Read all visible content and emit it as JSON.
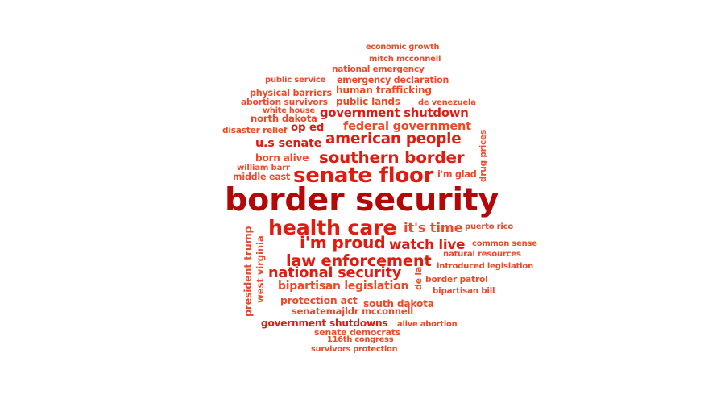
{
  "word_cloud": {
    "colors": {
      "dark": "#b40808",
      "red": "#e01b10",
      "orange": "#ec4a2a"
    },
    "words": [
      {
        "id": "w01",
        "text": "border security",
        "weight": 100,
        "color": "dark"
      },
      {
        "id": "w02",
        "text": "senate floor",
        "weight": 62,
        "color": "red"
      },
      {
        "id": "w03",
        "text": "health care",
        "weight": 60,
        "color": "red"
      },
      {
        "id": "w04",
        "text": "southern border",
        "weight": 44,
        "color": "red"
      },
      {
        "id": "w05",
        "text": "american people",
        "weight": 42,
        "color": "red"
      },
      {
        "id": "w06",
        "text": "i'm proud",
        "weight": 40,
        "color": "red"
      },
      {
        "id": "w07",
        "text": "national security",
        "weight": 38,
        "color": "red"
      },
      {
        "id": "w08",
        "text": "law enforcement",
        "weight": 38,
        "color": "red"
      },
      {
        "id": "w09",
        "text": "it's time",
        "weight": 36,
        "color": "orange"
      },
      {
        "id": "w10",
        "text": "watch live",
        "weight": 36,
        "color": "red"
      },
      {
        "id": "w11",
        "text": "government shutdown",
        "weight": 30,
        "color": "red"
      },
      {
        "id": "w12",
        "text": "federal government",
        "weight": 30,
        "color": "orange"
      },
      {
        "id": "w13",
        "text": "bipartisan legislation",
        "weight": 30,
        "color": "orange"
      },
      {
        "id": "w14",
        "text": "u.s senate",
        "weight": 28,
        "color": "red"
      },
      {
        "id": "w15",
        "text": "president trump",
        "weight": 27,
        "color": "orange"
      },
      {
        "id": "w16",
        "text": "government shutdowns",
        "weight": 25,
        "color": "red"
      },
      {
        "id": "w17",
        "text": "south dakota",
        "weight": 25,
        "color": "orange"
      },
      {
        "id": "w18",
        "text": "protection act",
        "weight": 25,
        "color": "orange"
      },
      {
        "id": "w19",
        "text": "born alive",
        "weight": 25,
        "color": "orange"
      },
      {
        "id": "w20",
        "text": "public lands",
        "weight": 24,
        "color": "orange"
      },
      {
        "id": "w21",
        "text": "human trafficking",
        "weight": 24,
        "color": "orange"
      },
      {
        "id": "w22",
        "text": "op ed",
        "weight": 24,
        "color": "red"
      },
      {
        "id": "w23",
        "text": "senatemajldr mcconnell",
        "weight": 23,
        "color": "orange"
      },
      {
        "id": "w24",
        "text": "west virginia",
        "weight": 22,
        "color": "orange"
      },
      {
        "id": "w25",
        "text": "border patrol",
        "weight": 21,
        "color": "orange"
      },
      {
        "id": "w26",
        "text": "emergency declaration",
        "weight": 21,
        "color": "orange"
      },
      {
        "id": "w27",
        "text": "north dakota",
        "weight": 21,
        "color": "orange"
      },
      {
        "id": "w28",
        "text": "physical barriers",
        "weight": 21,
        "color": "orange"
      },
      {
        "id": "w29",
        "text": "de la",
        "weight": 21,
        "color": "orange"
      },
      {
        "id": "w30",
        "text": "senate democrats",
        "weight": 20,
        "color": "orange"
      },
      {
        "id": "w31",
        "text": "i'm glad",
        "weight": 20,
        "color": "orange"
      },
      {
        "id": "w32",
        "text": "william barr",
        "weight": 19,
        "color": "orange"
      },
      {
        "id": "w33",
        "text": "middle east",
        "weight": 19,
        "color": "orange"
      },
      {
        "id": "w34",
        "text": "abortion survivors",
        "weight": 19,
        "color": "orange"
      },
      {
        "id": "w35",
        "text": "natural resources",
        "weight": 19,
        "color": "orange"
      },
      {
        "id": "w36",
        "text": "introduced legislation",
        "weight": 19,
        "color": "orange"
      },
      {
        "id": "w37",
        "text": "disaster relief",
        "weight": 19,
        "color": "orange"
      },
      {
        "id": "w38",
        "text": "drug prices",
        "weight": 19,
        "color": "orange"
      },
      {
        "id": "w39",
        "text": "national emergency",
        "weight": 18,
        "color": "orange"
      },
      {
        "id": "w40",
        "text": "mitch mcconnell",
        "weight": 18,
        "color": "orange"
      },
      {
        "id": "w41",
        "text": "public service",
        "weight": 18,
        "color": "orange"
      },
      {
        "id": "w42",
        "text": "de venezuela",
        "weight": 18,
        "color": "orange"
      },
      {
        "id": "w43",
        "text": "bipartisan bill",
        "weight": 18,
        "color": "orange"
      },
      {
        "id": "w44",
        "text": "common sense",
        "weight": 18,
        "color": "orange"
      },
      {
        "id": "w45",
        "text": "puerto rico",
        "weight": 18,
        "color": "orange"
      },
      {
        "id": "w46",
        "text": "alive abortion",
        "weight": 18,
        "color": "orange"
      },
      {
        "id": "w47",
        "text": "white house",
        "weight": 17,
        "color": "orange"
      },
      {
        "id": "w48",
        "text": "economic growth",
        "weight": 17,
        "color": "orange"
      },
      {
        "id": "w49",
        "text": "116th congress",
        "weight": 17,
        "color": "orange"
      },
      {
        "id": "w50",
        "text": "survivors protection",
        "weight": 17,
        "color": "orange"
      }
    ]
  }
}
